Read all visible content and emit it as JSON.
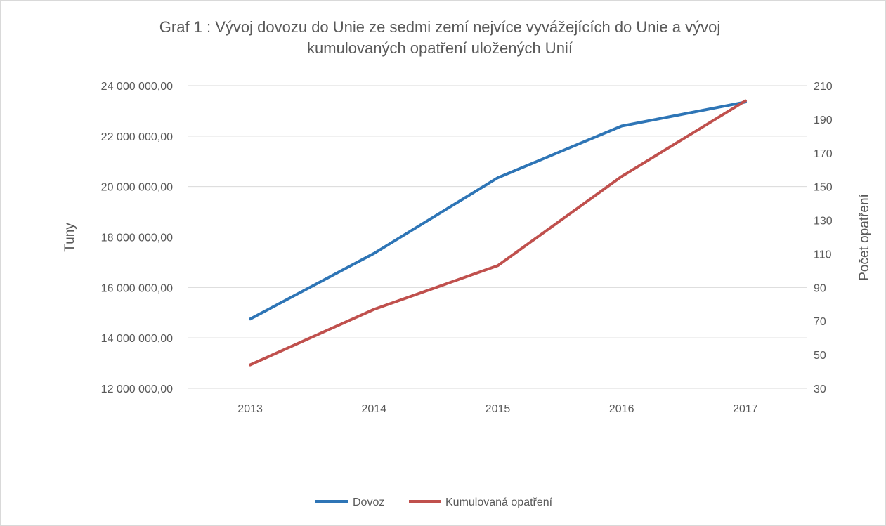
{
  "chart_data": {
    "type": "line",
    "title_lines": [
      "Graf 1 : Vývoj dovozu do Unie ze sedmi zemí nejvíce vyvážejících do Unie a vývoj",
      "kumulovaných opatření uložených Unií"
    ],
    "categories": [
      "2013",
      "2014",
      "2015",
      "2016",
      "2017"
    ],
    "series": [
      {
        "name": "Dovoz",
        "axis": "left",
        "color": "#2e75b6",
        "values": [
          14750000,
          17350000,
          20350000,
          22400000,
          23350000
        ]
      },
      {
        "name": "Kumulovaná opatření",
        "axis": "right",
        "color": "#c0504d",
        "values": [
          44,
          77,
          103,
          156,
          201
        ]
      }
    ],
    "y_left": {
      "label": "Tuny",
      "ylim": [
        12000000,
        24000000
      ],
      "ticks": [
        12000000,
        14000000,
        16000000,
        18000000,
        20000000,
        22000000,
        24000000
      ],
      "tick_labels": [
        "12 000 000,00",
        "14 000 000,00",
        "16 000 000,00",
        "18 000 000,00",
        "20 000 000,00",
        "22 000 000,00",
        "24 000 000,00"
      ]
    },
    "y_right": {
      "label": "Počet opatření",
      "ylim": [
        30,
        210
      ],
      "ticks": [
        30,
        50,
        70,
        90,
        110,
        130,
        150,
        170,
        190,
        210
      ],
      "tick_labels": [
        "30",
        "50",
        "70",
        "90",
        "110",
        "130",
        "150",
        "170",
        "190",
        "210"
      ]
    },
    "grid": true,
    "legend_position": "bottom"
  }
}
